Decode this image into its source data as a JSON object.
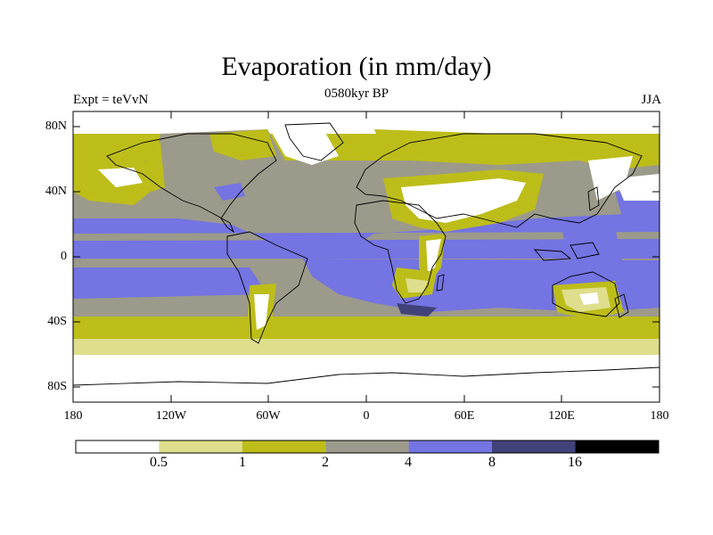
{
  "title": "Evaporation (in mm/day)",
  "subtitle_center": "0580kyr BP",
  "subtitle_left": "Expt = teVvN",
  "subtitle_right": "JJA",
  "lat_labels": [
    "80N",
    "40N",
    "0",
    "40S",
    "80S"
  ],
  "lon_labels": [
    "180",
    "120W",
    "60W",
    "0",
    "60E",
    "120E",
    "180"
  ],
  "colorbar": {
    "levels": [
      "0.5",
      "1",
      "2",
      "4",
      "8",
      "16"
    ],
    "colors": [
      "#ffffff",
      "#dede8c",
      "#bdbd1a",
      "#9c9a8a",
      "#7474e2",
      "#42427a",
      "#000000"
    ]
  }
}
